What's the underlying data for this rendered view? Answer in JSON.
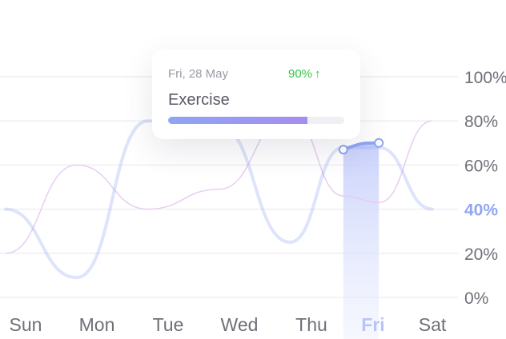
{
  "chart_data": {
    "type": "line",
    "categories": [
      "Sun",
      "Mon",
      "Tue",
      "Wed",
      "Thu",
      "Fri",
      "Sat"
    ],
    "highlight_category": "Fri",
    "ylim": [
      0,
      100
    ],
    "y_ticks": [
      {
        "value": 100,
        "label": "100%"
      },
      {
        "value": 80,
        "label": "80%"
      },
      {
        "value": 60,
        "label": "60%"
      },
      {
        "value": 40,
        "label": "40%"
      },
      {
        "value": 20,
        "label": "20%"
      },
      {
        "value": 0,
        "label": "0%"
      }
    ],
    "active_y_tick": "40%",
    "grid": true,
    "series": [
      {
        "role": "primary",
        "color": "#8fa6f2",
        "points": [
          [
            0,
            40
          ],
          [
            1,
            9
          ],
          [
            2,
            80
          ],
          [
            3,
            78
          ],
          [
            4,
            25
          ],
          [
            4.75,
            68
          ],
          [
            5.25,
            68
          ],
          [
            6,
            40
          ]
        ]
      },
      {
        "role": "secondary",
        "color": "#e6c9ef",
        "points": [
          [
            0,
            20
          ],
          [
            1,
            60
          ],
          [
            2,
            40
          ],
          [
            3,
            49
          ],
          [
            4,
            83
          ],
          [
            4.75,
            46
          ],
          [
            5.25,
            43
          ],
          [
            6,
            80
          ]
        ]
      }
    ],
    "selected_segment": {
      "from": 4.75,
      "to": 5.25,
      "from_value": 67,
      "to_value": 70
    }
  },
  "tooltip": {
    "date": "Fri, 28 May",
    "change": "90%",
    "change_icon": "arrow-up-icon",
    "change_color": "#35c44a",
    "activity": "Exercise",
    "progress": 0.79
  }
}
